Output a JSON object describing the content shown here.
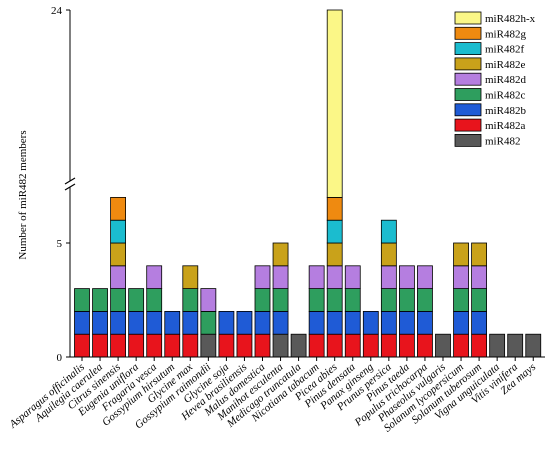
{
  "chart_data": {
    "type": "bar",
    "stacked": true,
    "axis_break": true,
    "ylabel": "Number of miR482 members",
    "yticks": [
      0,
      5,
      24
    ],
    "legend_position": "top-right",
    "categories": [
      "Asparagus officinalis",
      "Aquilegia caerulea",
      "Citrus sinensis",
      "Eugenia uniflora",
      "Fragaria vesca",
      "Gossypium hirsutum",
      "Glycine max",
      "Gossypium raimondii",
      "Glycine soja",
      "Hevea brasiliensis",
      "Malus domestica",
      "Manihot esculenta",
      "Medicago truncatula",
      "Nicotiana tabacum",
      "Picea abies",
      "Pinus densata",
      "Panax ginseng",
      "Prunus persica",
      "Pinus taeda",
      "Populus trichocarpa",
      "Phaseolus vulgaris",
      "Solanum lycopersicum",
      "Solanum tuberosum",
      "Vigna unguiculata",
      "Vitis vinifera",
      "Zea mays"
    ],
    "series": [
      {
        "name": "miR482",
        "color": "#595959",
        "values": [
          0,
          0,
          0,
          0,
          0,
          0,
          0,
          1,
          0,
          0,
          0,
          1,
          1,
          0,
          0,
          0,
          0,
          0,
          0,
          0,
          1,
          0,
          0,
          1,
          1,
          1
        ]
      },
      {
        "name": "miR482a",
        "color": "#e8141c",
        "values": [
          1,
          1,
          1,
          1,
          1,
          1,
          1,
          0,
          1,
          1,
          1,
          0,
          0,
          1,
          1,
          1,
          1,
          1,
          1,
          1,
          0,
          1,
          1,
          0,
          0,
          0
        ]
      },
      {
        "name": "miR482b",
        "color": "#1f5bd6",
        "values": [
          1,
          1,
          1,
          1,
          1,
          1,
          1,
          0,
          1,
          1,
          1,
          1,
          0,
          1,
          1,
          1,
          1,
          1,
          1,
          1,
          0,
          1,
          1,
          0,
          0,
          0
        ]
      },
      {
        "name": "miR482c",
        "color": "#2e9e5e",
        "values": [
          1,
          1,
          1,
          1,
          1,
          0,
          1,
          1,
          0,
          0,
          1,
          1,
          0,
          1,
          1,
          1,
          0,
          1,
          1,
          1,
          0,
          1,
          1,
          0,
          0,
          0
        ]
      },
      {
        "name": "miR482d",
        "color": "#b57ee0",
        "values": [
          0,
          0,
          1,
          0,
          1,
          0,
          0,
          1,
          0,
          0,
          1,
          1,
          0,
          1,
          1,
          1,
          0,
          1,
          1,
          1,
          0,
          1,
          1,
          0,
          0,
          0
        ]
      },
      {
        "name": "miR482e",
        "color": "#c9a21a",
        "values": [
          0,
          0,
          1,
          0,
          0,
          0,
          1,
          0,
          0,
          0,
          0,
          1,
          0,
          0,
          1,
          0,
          0,
          1,
          0,
          0,
          0,
          1,
          1,
          0,
          0,
          0
        ]
      },
      {
        "name": "miR482f",
        "color": "#1bbccf",
        "values": [
          0,
          0,
          1,
          0,
          0,
          0,
          0,
          0,
          0,
          0,
          0,
          0,
          0,
          0,
          1,
          0,
          0,
          1,
          0,
          0,
          0,
          0,
          0,
          0,
          0,
          0
        ]
      },
      {
        "name": "miR482g",
        "color": "#ef8a10",
        "values": [
          0,
          0,
          1,
          0,
          0,
          0,
          0,
          0,
          0,
          0,
          0,
          0,
          0,
          0,
          1,
          0,
          0,
          0,
          0,
          0,
          0,
          0,
          0,
          0,
          0,
          0
        ]
      },
      {
        "name": "miR482h-x",
        "color": "#fbf787",
        "values": [
          0,
          0,
          0,
          0,
          0,
          0,
          0,
          0,
          0,
          0,
          0,
          0,
          0,
          0,
          17,
          0,
          0,
          0,
          0,
          0,
          0,
          0,
          0,
          0,
          0,
          0
        ]
      }
    ]
  }
}
